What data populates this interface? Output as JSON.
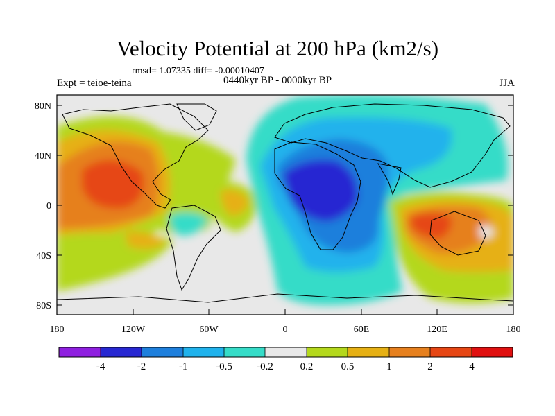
{
  "title": "Velocity Potential at 200 hPa (km2/s)",
  "stats": "rmsd= 1.07335 diff= -0.00010407",
  "period": "0440kyr BP - 0000kyr BP",
  "experiment": "Expt = teioe-teina",
  "season": "JJA",
  "y_ticks": [
    "80N",
    "40N",
    "0",
    "40S",
    "80S"
  ],
  "x_ticks": [
    "180",
    "120W",
    "60W",
    "0",
    "60E",
    "120E",
    "180"
  ],
  "colorbar": {
    "labels": [
      "-4",
      "-2",
      "-1",
      "-0.5",
      "-0.2",
      "0.2",
      "0.5",
      "1",
      "2",
      "4"
    ],
    "colors": [
      "#8f20e0",
      "#2828d2",
      "#1e7fdc",
      "#20b2ec",
      "#36dcc8",
      "#e8e8e8",
      "#b4d81c",
      "#e6b014",
      "#e6801e",
      "#e64614",
      "#e01010"
    ]
  }
}
